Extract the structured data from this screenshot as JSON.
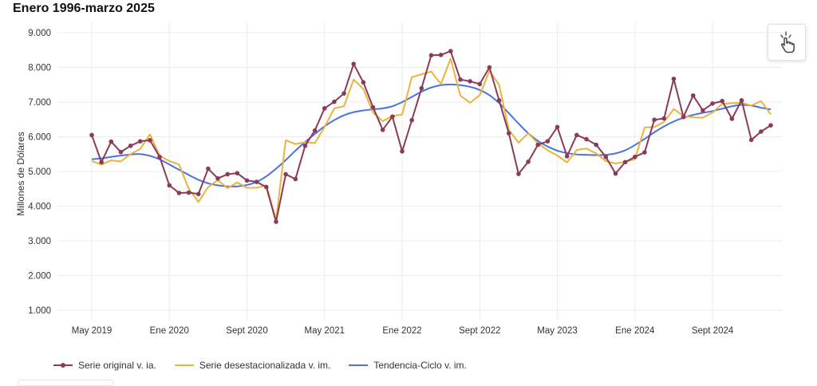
{
  "title": "Enero 1996-marzo 2025",
  "colors": {
    "original": "#8b3a5a",
    "desest": "#e8b43c",
    "tendencia": "#4a72e0"
  },
  "chart_data": {
    "type": "line",
    "title": "Enero 1996-marzo 2025",
    "xlabel": "",
    "ylabel": "Millones de Dólares",
    "ylim": [
      700,
      9300
    ],
    "yticks": [
      1000,
      2000,
      3000,
      4000,
      5000,
      6000,
      7000,
      8000,
      9000
    ],
    "ytick_labels": [
      "1.000",
      "2.000",
      "3.000",
      "4.000",
      "5.000",
      "6.000",
      "7.000",
      "8.000",
      "9.000"
    ],
    "xticks": [
      {
        "label": "May 2019",
        "index": 0
      },
      {
        "label": "Ene 2020",
        "index": 8
      },
      {
        "label": "Sept 2020",
        "index": 16
      },
      {
        "label": "May 2021",
        "index": 24
      },
      {
        "label": "Ene 2022",
        "index": 32
      },
      {
        "label": "Sept 2022",
        "index": 40
      },
      {
        "label": "May 2023",
        "index": 48
      },
      {
        "label": "Ene 2024",
        "index": 56
      },
      {
        "label": "Sept 2024",
        "index": 64
      }
    ],
    "grid": true,
    "legend": "bottom-left",
    "series": [
      {
        "name": "Serie original v. ia.",
        "markers": true,
        "values": [
          6050,
          5270,
          5860,
          5560,
          5740,
          5870,
          5900,
          5420,
          4600,
          4380,
          4390,
          4350,
          5080,
          4800,
          4920,
          4950,
          4740,
          4700,
          4550,
          3550,
          4920,
          4780,
          5740,
          6180,
          6820,
          7010,
          7250,
          8100,
          7570,
          6850,
          6200,
          6580,
          5580,
          6480,
          7400,
          8350,
          8360,
          8470,
          7650,
          7600,
          7520,
          8000,
          7050,
          6100,
          4930,
          5280,
          5770,
          5870,
          6280,
          5440,
          6050,
          5930,
          5770,
          5420,
          4940,
          5270,
          5420,
          5550,
          6490,
          6530,
          7670,
          6570,
          7190,
          6760,
          6960,
          7030,
          6520,
          7050,
          5910,
          6150,
          6330
        ]
      },
      {
        "name": "Serie desestacionalizada v. im.",
        "markers": false,
        "values": [
          5300,
          5200,
          5320,
          5290,
          5500,
          5650,
          6070,
          5450,
          5300,
          5200,
          4500,
          4120,
          4550,
          4750,
          4520,
          4680,
          4530,
          4530,
          4600,
          3600,
          5900,
          5790,
          5840,
          5820,
          6280,
          6820,
          6880,
          7650,
          7380,
          6700,
          6450,
          6600,
          6640,
          7720,
          7800,
          7880,
          7520,
          8250,
          7190,
          6980,
          7200,
          7900,
          7500,
          6200,
          5830,
          6100,
          5810,
          5610,
          5460,
          5260,
          5620,
          5660,
          5520,
          5300,
          5230,
          5280,
          5350,
          6270,
          6280,
          6430,
          6800,
          6600,
          6560,
          6550,
          6700,
          6950,
          6970,
          6980,
          6900,
          7030,
          6650
        ]
      },
      {
        "name": "Tendencia-Ciclo v. im.",
        "markers": false,
        "smooth": true,
        "values": [
          5350,
          5380,
          5420,
          5460,
          5490,
          5500,
          5450,
          5350,
          5200,
          5050,
          4900,
          4760,
          4660,
          4600,
          4570,
          4570,
          4610,
          4700,
          4860,
          5080,
          5330,
          5600,
          5850,
          6080,
          6300,
          6480,
          6620,
          6710,
          6760,
          6790,
          6820,
          6880,
          7000,
          7150,
          7300,
          7420,
          7490,
          7510,
          7490,
          7440,
          7350,
          7200,
          6970,
          6680,
          6380,
          6100,
          5880,
          5720,
          5600,
          5530,
          5490,
          5480,
          5470,
          5480,
          5520,
          5610,
          5760,
          5940,
          6130,
          6300,
          6440,
          6550,
          6630,
          6690,
          6740,
          6810,
          6880,
          6920,
          6900,
          6840,
          6790
        ]
      }
    ]
  }
}
